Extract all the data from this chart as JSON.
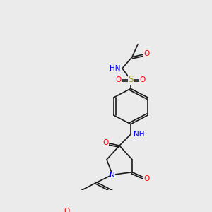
{
  "background_color": "#ebebeb",
  "bond_color": "#1a1a1a",
  "colors": {
    "N": "#0000ff",
    "O": "#ff0000",
    "S": "#999900",
    "H": "#008080",
    "C": "#1a1a1a"
  },
  "font_size": 7.5,
  "line_width": 1.2
}
